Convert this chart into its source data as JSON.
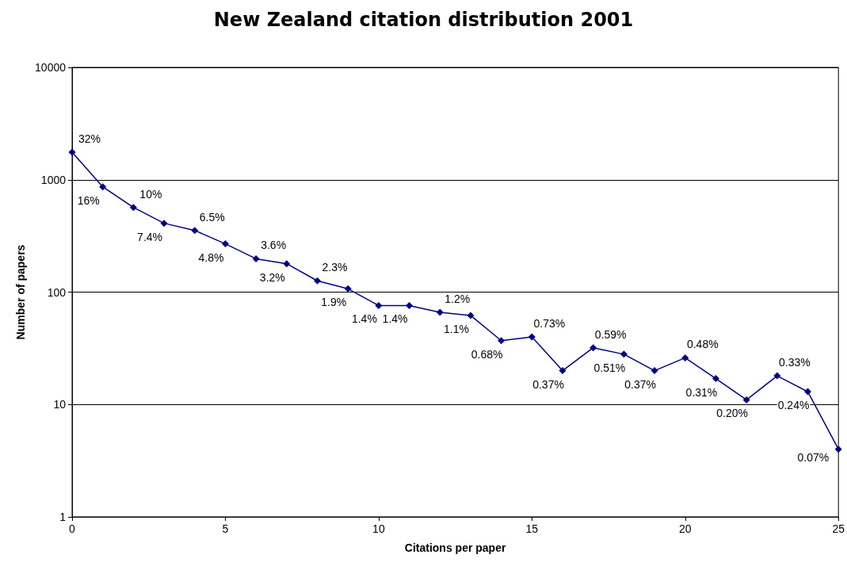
{
  "chart_data": {
    "type": "line",
    "title": "New Zealand citation distribution 2001",
    "xlabel": "Citations per paper",
    "ylabel": "Number of papers",
    "x": [
      0,
      1,
      2,
      3,
      4,
      5,
      6,
      7,
      8,
      9,
      10,
      11,
      12,
      13,
      14,
      15,
      16,
      17,
      18,
      19,
      20,
      21,
      22,
      23,
      24,
      25
    ],
    "series": [
      {
        "color": "#000080",
        "values": [
          1760,
          865,
          567,
          410,
          354,
          269,
          198,
          179,
          126,
          107,
          76,
          76,
          66,
          62,
          37,
          40,
          20,
          32,
          28,
          20,
          26,
          17,
          11,
          18,
          13,
          4
        ]
      }
    ],
    "annotations": [
      {
        "text": "32%",
        "x": 0,
        "y": 1760
      },
      {
        "text": "16%",
        "x": 1,
        "y": 865
      },
      {
        "text": "10%",
        "x": 2,
        "y": 567
      },
      {
        "text": "7.4%",
        "x": 3,
        "y": 410
      },
      {
        "text": "6.5%",
        "x": 4,
        "y": 354
      },
      {
        "text": "4.8%",
        "x": 5,
        "y": 269
      },
      {
        "text": "3.6%",
        "x": 6,
        "y": 198
      },
      {
        "text": "3.2%",
        "x": 7,
        "y": 179
      },
      {
        "text": "2.3%",
        "x": 8,
        "y": 126
      },
      {
        "text": "1.9%",
        "x": 9,
        "y": 107
      },
      {
        "text": "1.4%",
        "x": 10,
        "y": 76
      },
      {
        "text": "1.4%",
        "x": 11,
        "y": 76
      },
      {
        "text": "1.2%",
        "x": 12,
        "y": 66
      },
      {
        "text": "1.1%",
        "x": 13,
        "y": 62
      },
      {
        "text": "0.68%",
        "x": 14,
        "y": 37
      },
      {
        "text": "0.73%",
        "x": 15,
        "y": 40
      },
      {
        "text": "0.37%",
        "x": 16,
        "y": 20
      },
      {
        "text": "0.59%",
        "x": 17,
        "y": 32
      },
      {
        "text": "0.51%",
        "x": 18,
        "y": 28
      },
      {
        "text": "0.37%",
        "x": 19,
        "y": 20
      },
      {
        "text": "0.48%",
        "x": 20,
        "y": 26
      },
      {
        "text": "0.31%",
        "x": 21,
        "y": 17
      },
      {
        "text": "0.20%",
        "x": 22,
        "y": 11
      },
      {
        "text": "0.33%",
        "x": 23,
        "y": 18
      },
      {
        "text": "0.24%",
        "x": 24,
        "y": 13
      },
      {
        "text": "0.07%",
        "x": 25,
        "y": 4
      }
    ],
    "xlim": [
      0,
      25
    ],
    "xticks": [
      0,
      5,
      10,
      15,
      20,
      25
    ],
    "ylim": [
      1,
      10000
    ],
    "yticks": [
      1,
      10,
      100,
      1000,
      10000
    ],
    "log": "y",
    "grid": "y",
    "marker": "diamond",
    "line_style": "solid"
  }
}
